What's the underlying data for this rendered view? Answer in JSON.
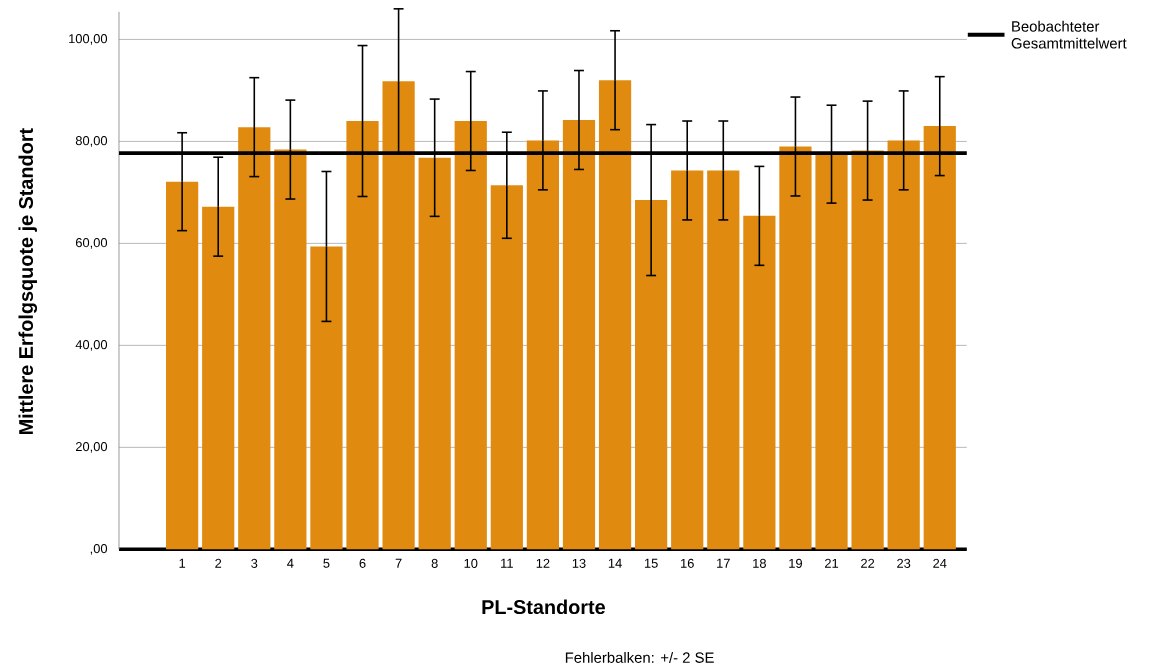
{
  "chart_data": {
    "type": "bar",
    "xlabel": "PL-Standorte",
    "ylabel": "Mittlere Erfolgsquote je Standort",
    "categories": [
      "1",
      "2",
      "3",
      "4",
      "5",
      "6",
      "7",
      "8",
      "10",
      "11",
      "12",
      "13",
      "14",
      "15",
      "16",
      "17",
      "18",
      "19",
      "21",
      "22",
      "23",
      "24"
    ],
    "values": [
      72.1,
      67.2,
      82.8,
      78.4,
      59.4,
      84.0,
      91.8,
      76.8,
      84.0,
      71.4,
      80.2,
      84.2,
      92.0,
      68.5,
      74.3,
      74.3,
      65.4,
      79.0,
      77.5,
      78.2,
      80.2,
      83.0
    ],
    "errors": [
      9.6,
      9.7,
      9.7,
      9.7,
      14.7,
      14.8,
      14.2,
      11.5,
      9.7,
      10.4,
      9.7,
      9.7,
      9.7,
      14.8,
      9.7,
      9.7,
      9.7,
      9.7,
      9.6,
      9.7,
      9.7,
      9.7
    ],
    "color": "#e08b0f",
    "ylim": [
      0,
      105.4
    ],
    "yticks": [
      {
        "value": 0,
        "label": ",00"
      },
      {
        "value": 20,
        "label": "20,00"
      },
      {
        "value": 40,
        "label": "40,00"
      },
      {
        "value": 60,
        "label": "60,00"
      },
      {
        "value": 80,
        "label": "80,00"
      },
      {
        "value": 100,
        "label": "100,00"
      }
    ],
    "grid": "y",
    "ref_lines": [
      {
        "axis": "y",
        "value": 77.7,
        "label": "Beobachteter Gesamtmittelwert",
        "color": "#000000"
      }
    ],
    "legend": "top right",
    "annotations": [
      "Fehlerbalken: +/- 2 SE"
    ]
  }
}
